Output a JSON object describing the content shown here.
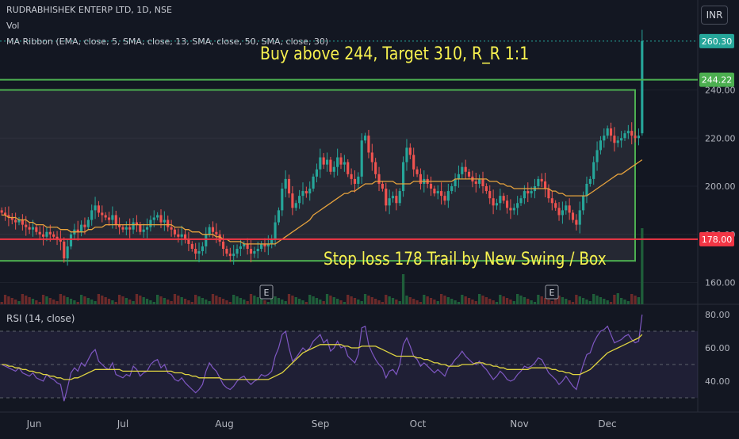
{
  "legend": {
    "title": "RUDRABHISHEK ENTERP LTD, 1D, NSE",
    "volume": "Vol",
    "ma_ribbon": "MA Ribbon (EMA, close, 5, SMA, close, 13, SMA, close, 50, SMA, close, 30)"
  },
  "currency": "INR",
  "annotations": {
    "buy_note": "Buy above 244, Target 310, R_R 1:1",
    "stop_note": "Stop loss 178 Trail by New Swing / Box"
  },
  "earnings_marker": "E",
  "rsi_legend": "RSI (14, close)",
  "colors": {
    "background": "#131722",
    "candle_up": "#26a69a",
    "candle_down": "#ef5350",
    "ma_line": "#e8a33d",
    "rsi_line": "#7e57c2",
    "rsi_ma": "#e0d541",
    "green_line": "#4caf50",
    "red_line": "#f23645",
    "note_text": "#f7f14f"
  },
  "chart_data": [
    {
      "type": "candlestick",
      "title": "RUDRABHISHEK ENTERP LTD, 1D, NSE",
      "y_ticks": [
        "240.00",
        "220.00",
        "200.00",
        "180.00",
        "160.00"
      ],
      "price_labels": [
        {
          "value": 260.3,
          "text": "260.30",
          "color": "#26a69a"
        },
        {
          "value": 244.22,
          "text": "244.22",
          "color": "#4caf50"
        },
        {
          "value": 178.0,
          "text": "178.00",
          "color": "#f23645"
        }
      ],
      "x_labels": [
        "Jun",
        "Jul",
        "Aug",
        "Sep",
        "Oct",
        "Nov",
        "Dec"
      ],
      "levels": {
        "buy": 244.22,
        "stop": 178,
        "last": 260.3
      },
      "box": {
        "top": 240,
        "bottom": 169
      },
      "ylim": [
        150,
        265
      ],
      "closes": [
        189,
        188,
        187,
        186,
        185,
        186,
        184,
        183,
        182,
        183,
        181,
        180,
        179,
        181,
        180,
        179,
        178,
        177,
        170,
        175,
        180,
        182,
        181,
        184,
        183,
        186,
        190,
        192,
        189,
        188,
        187,
        186,
        188,
        184,
        183,
        182,
        183,
        182,
        185,
        184,
        181,
        182,
        183,
        186,
        187,
        188,
        185,
        186,
        183,
        182,
        180,
        179,
        180,
        178,
        176,
        174,
        172,
        173,
        175,
        180,
        183,
        181,
        180,
        177,
        174,
        172,
        171,
        172,
        174,
        175,
        176,
        174,
        172,
        173,
        174,
        176,
        175,
        176,
        178,
        185,
        190,
        199,
        203,
        197,
        191,
        193,
        196,
        198,
        197,
        199,
        204,
        207,
        212,
        209,
        211,
        206,
        208,
        212,
        209,
        210,
        205,
        203,
        201,
        204,
        219,
        221,
        214,
        210,
        205,
        201,
        199,
        192,
        195,
        196,
        193,
        198,
        210,
        216,
        213,
        207,
        205,
        201,
        203,
        201,
        199,
        197,
        198,
        196,
        194,
        198,
        200,
        203,
        205,
        208,
        206,
        204,
        202,
        201,
        203,
        200,
        198,
        195,
        192,
        193,
        196,
        194,
        191,
        190,
        191,
        193,
        195,
        198,
        197,
        198,
        200,
        203,
        202,
        199,
        195,
        193,
        191,
        188,
        190,
        192,
        189,
        186,
        184,
        190,
        196,
        201,
        203,
        210,
        215,
        219,
        221,
        224,
        221,
        218,
        219,
        220,
        222,
        223,
        221,
        220,
        221,
        260.3
      ],
      "ma": [
        188,
        188,
        187,
        187,
        187,
        186,
        186,
        186,
        185,
        185,
        184,
        184,
        184,
        183,
        183,
        183,
        183,
        182,
        182,
        182,
        181,
        181,
        181,
        181,
        181,
        182,
        182,
        183,
        183,
        183,
        184,
        184,
        184,
        184,
        184,
        184,
        184,
        184,
        184,
        184,
        184,
        184,
        184,
        184,
        184,
        184,
        184,
        184,
        184,
        184,
        183,
        183,
        183,
        182,
        182,
        181,
        181,
        181,
        180,
        180,
        180,
        180,
        179,
        179,
        178,
        178,
        177,
        177,
        177,
        177,
        176,
        176,
        176,
        176,
        176,
        176,
        176,
        176,
        176,
        176,
        177,
        178,
        179,
        180,
        181,
        182,
        183,
        184,
        185,
        186,
        188,
        189,
        190,
        191,
        192,
        193,
        194,
        195,
        196,
        197,
        197,
        198,
        198,
        199,
        200,
        201,
        201,
        201,
        202,
        202,
        202,
        202,
        202,
        202,
        201,
        201,
        201,
        201,
        201,
        202,
        202,
        202,
        202,
        202,
        202,
        202,
        202,
        202,
        202,
        202,
        202,
        203,
        203,
        203,
        203,
        203,
        203,
        203,
        203,
        203,
        203,
        202,
        202,
        202,
        201,
        201,
        200,
        200,
        199,
        199,
        199,
        199,
        199,
        199,
        199,
        199,
        199,
        199,
        199,
        198,
        198,
        197,
        197,
        196,
        196,
        196,
        196,
        196,
        196,
        196,
        197,
        198,
        199,
        200,
        201,
        202,
        203,
        204,
        205,
        205,
        206,
        207,
        208,
        209,
        210,
        211
      ]
    },
    {
      "type": "line",
      "title": "RSI (14, close)",
      "y_ticks": [
        "80.00",
        "60.00",
        "40.00"
      ],
      "ylim": [
        25,
        85
      ],
      "guide_lines": [
        70,
        50,
        30
      ],
      "rsi": [
        50,
        49,
        48,
        47,
        46,
        48,
        45,
        44,
        43,
        45,
        42,
        41,
        40,
        44,
        42,
        41,
        39,
        38,
        28,
        36,
        45,
        48,
        46,
        51,
        49,
        53,
        57,
        59,
        52,
        50,
        48,
        47,
        51,
        44,
        43,
        42,
        44,
        43,
        49,
        47,
        43,
        45,
        46,
        50,
        52,
        53,
        48,
        50,
        45,
        44,
        41,
        40,
        42,
        39,
        37,
        35,
        33,
        35,
        38,
        46,
        51,
        48,
        46,
        42,
        38,
        36,
        35,
        37,
        40,
        42,
        43,
        40,
        38,
        40,
        41,
        44,
        43,
        44,
        46,
        55,
        60,
        68,
        70,
        60,
        52,
        54,
        57,
        60,
        58,
        60,
        64,
        66,
        68,
        63,
        65,
        58,
        60,
        64,
        60,
        61,
        55,
        53,
        51,
        56,
        72,
        73,
        62,
        57,
        53,
        50,
        48,
        42,
        46,
        47,
        44,
        50,
        62,
        66,
        61,
        55,
        53,
        49,
        51,
        49,
        47,
        45,
        47,
        45,
        43,
        48,
        50,
        53,
        55,
        58,
        55,
        53,
        51,
        50,
        52,
        49,
        47,
        44,
        41,
        43,
        46,
        44,
        41,
        40,
        41,
        44,
        46,
        49,
        48,
        49,
        51,
        54,
        53,
        49,
        45,
        43,
        41,
        38,
        40,
        43,
        40,
        37,
        35,
        43,
        50,
        56,
        57,
        63,
        67,
        70,
        71,
        73,
        68,
        63,
        64,
        65,
        67,
        68,
        65,
        63,
        64,
        80
      ],
      "rsi_ma": [
        50,
        50,
        49,
        49,
        48,
        48,
        47,
        47,
        46,
        46,
        45,
        45,
        44,
        44,
        43,
        43,
        42,
        42,
        41,
        41,
        41,
        42,
        42,
        43,
        44,
        45,
        46,
        47,
        47,
        47,
        47,
        47,
        47,
        47,
        47,
        46,
        46,
        46,
        46,
        46,
        46,
        46,
        46,
        46,
        46,
        46,
        46,
        46,
        46,
        46,
        45,
        45,
        45,
        44,
        44,
        43,
        43,
        42,
        42,
        42,
        42,
        42,
        42,
        42,
        41,
        41,
        41,
        41,
        41,
        41,
        41,
        41,
        41,
        41,
        41,
        41,
        41,
        41,
        42,
        43,
        44,
        45,
        47,
        49,
        51,
        53,
        55,
        57,
        58,
        59,
        60,
        61,
        62,
        62,
        62,
        62,
        62,
        62,
        62,
        61,
        61,
        60,
        60,
        60,
        61,
        61,
        61,
        61,
        61,
        60,
        59,
        58,
        57,
        56,
        55,
        55,
        55,
        55,
        55,
        55,
        54,
        54,
        53,
        53,
        52,
        51,
        51,
        50,
        50,
        49,
        49,
        49,
        49,
        50,
        50,
        50,
        50,
        51,
        51,
        51,
        50,
        50,
        49,
        49,
        48,
        48,
        47,
        47,
        47,
        47,
        47,
        47,
        47,
        48,
        48,
        48,
        48,
        48,
        48,
        47,
        47,
        46,
        46,
        45,
        45,
        44,
        44,
        44,
        45,
        46,
        47,
        49,
        51,
        53,
        55,
        57,
        58,
        59,
        60,
        61,
        62,
        63,
        64,
        65,
        66,
        68
      ]
    }
  ]
}
